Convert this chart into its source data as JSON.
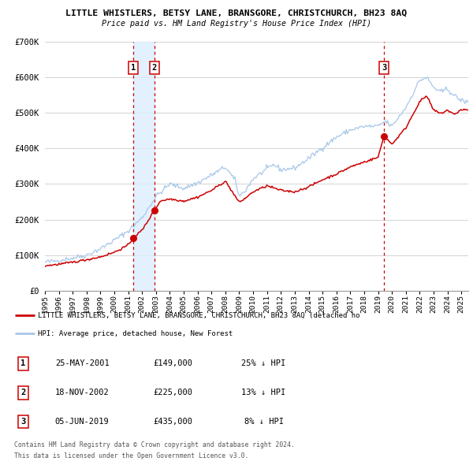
{
  "title": "LITTLE WHISTLERS, BETSY LANE, BRANSGORE, CHRISTCHURCH, BH23 8AQ",
  "subtitle": "Price paid vs. HM Land Registry's House Price Index (HPI)",
  "ylim": [
    0,
    700000
  ],
  "yticks": [
    0,
    100000,
    200000,
    300000,
    400000,
    500000,
    600000,
    700000
  ],
  "ytick_labels": [
    "£0",
    "£100K",
    "£200K",
    "£300K",
    "£400K",
    "£500K",
    "£600K",
    "£700K"
  ],
  "hpi_color": "#a8c8e8",
  "price_color": "#cc0000",
  "shade_color": "#ddeeff",
  "grid_color": "#cccccc",
  "background_color": "#ffffff",
  "transactions": [
    {
      "label": "1",
      "date_num": 2001.38,
      "price": 149000
    },
    {
      "label": "2",
      "date_num": 2002.88,
      "price": 225000
    },
    {
      "label": "3",
      "date_num": 2019.43,
      "price": 435000
    }
  ],
  "transaction_table": [
    {
      "num": "1",
      "date": "25-MAY-2001",
      "price": "£149,000",
      "pct": "25% ↓ HPI"
    },
    {
      "num": "2",
      "date": "18-NOV-2002",
      "price": "£225,000",
      "pct": "13% ↓ HPI"
    },
    {
      "num": "3",
      "date": "05-JUN-2019",
      "price": "£435,000",
      "pct": "8% ↓ HPI"
    }
  ],
  "legend_red_label": "LITTLE WHISTLERS, BETSY LANE, BRANSGORE, CHRISTCHURCH, BH23 8AQ (detached ho",
  "legend_blue_label": "HPI: Average price, detached house, New Forest",
  "footer1": "Contains HM Land Registry data © Crown copyright and database right 2024.",
  "footer2": "This data is licensed under the Open Government Licence v3.0.",
  "xlim": [
    1995,
    2025.5
  ],
  "xtick_years": [
    1995,
    1996,
    1997,
    1998,
    1999,
    2000,
    2001,
    2002,
    2003,
    2004,
    2005,
    2006,
    2007,
    2008,
    2009,
    2010,
    2011,
    2012,
    2013,
    2014,
    2015,
    2016,
    2017,
    2018,
    2019,
    2020,
    2021,
    2022,
    2023,
    2024,
    2025
  ]
}
